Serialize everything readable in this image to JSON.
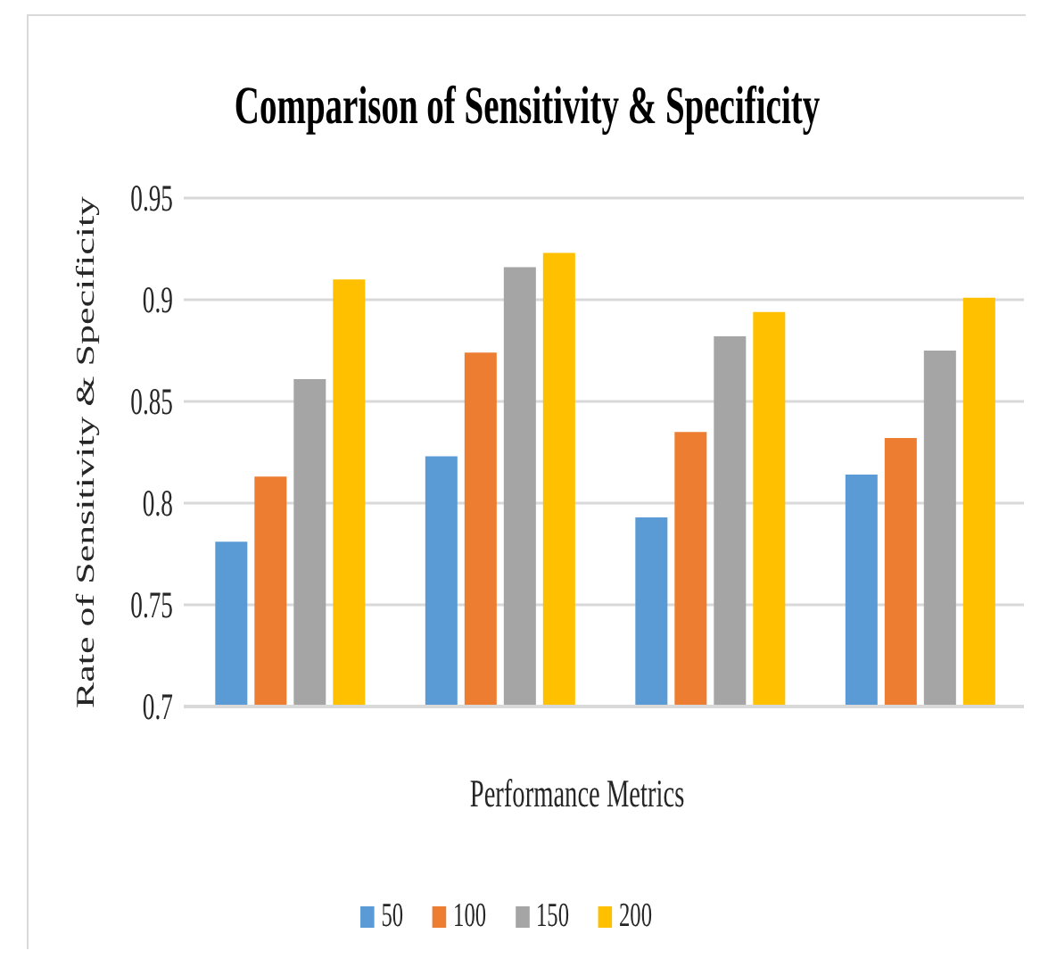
{
  "chart_data": {
    "type": "bar",
    "title": "Comparison of Sensitivity & Specificity",
    "xlabel": "Performance Metrics",
    "ylabel": "Rate of Sensitivity & Specificity",
    "categories": [
      null,
      null,
      null,
      null
    ],
    "series": [
      {
        "name": "50",
        "color": "#5b9bd5",
        "values": [
          0.781,
          0.823,
          0.793,
          0.814
        ]
      },
      {
        "name": "100",
        "color": "#ed7d31",
        "values": [
          0.813,
          0.874,
          0.835,
          0.832
        ]
      },
      {
        "name": "150",
        "color": "#a5a5a5",
        "values": [
          0.861,
          0.916,
          0.882,
          0.875
        ]
      },
      {
        "name": "200",
        "color": "#ffc000",
        "values": [
          0.91,
          0.923,
          0.894,
          0.901
        ]
      }
    ],
    "ylim": [
      0.7,
      0.95
    ],
    "yticks": [
      0.7,
      0.75,
      0.8,
      0.85,
      0.9,
      0.95
    ],
    "grid": "y",
    "legend": "bottom",
    "tick_labels": "y"
  }
}
